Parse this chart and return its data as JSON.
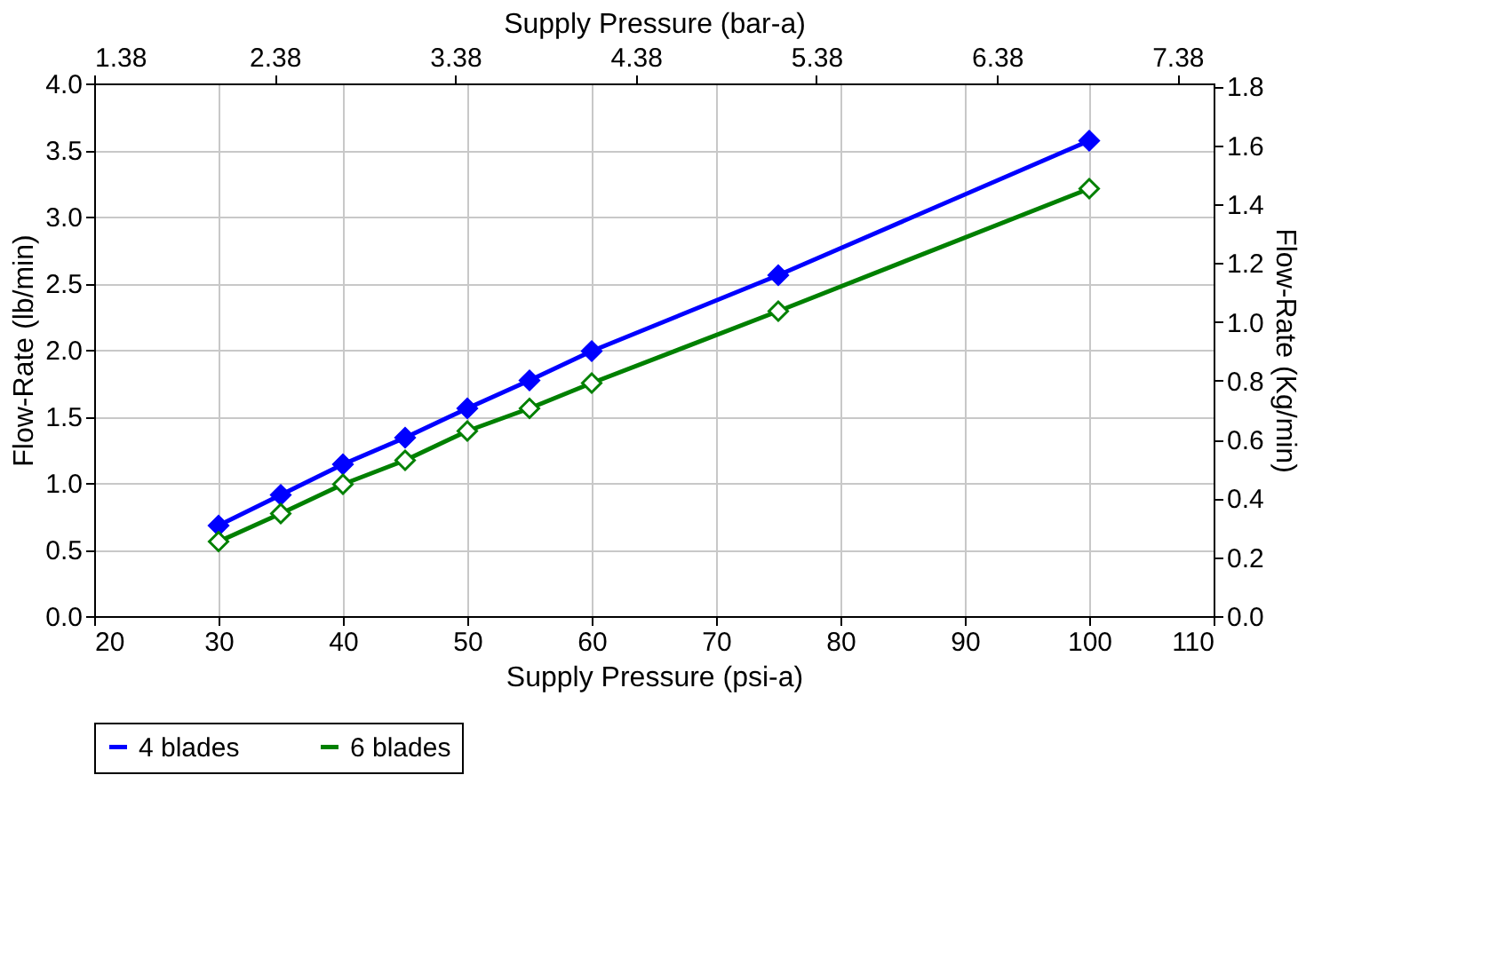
{
  "chart_data": {
    "type": "line",
    "xlabel": "Supply Pressure (psi-a)",
    "ylabel": "Flow-Rate (lb/min)",
    "y2label": "Flow-Rate (Kg/min)",
    "x2label": "Supply Pressure (bar-a)",
    "x": [
      30,
      35,
      40,
      45,
      50,
      55,
      60,
      75,
      100
    ],
    "series": [
      {
        "name": "4 blades",
        "color": "#0000ff",
        "values": [
          0.68,
          0.91,
          1.14,
          1.34,
          1.56,
          1.77,
          1.99,
          2.56,
          3.57
        ]
      },
      {
        "name": "6 blades",
        "color": "#008000",
        "values": [
          0.56,
          0.77,
          0.99,
          1.17,
          1.39,
          1.56,
          1.75,
          2.29,
          3.21
        ]
      }
    ],
    "xlim": [
      20,
      110
    ],
    "xticks": [
      20,
      30,
      40,
      50,
      60,
      70,
      80,
      90,
      100,
      110
    ],
    "ylim": [
      0,
      4
    ],
    "yticks": [
      {
        "value": 0,
        "label": "0.0"
      },
      {
        "value": 0.5,
        "label": "0.5"
      },
      {
        "value": 1,
        "label": "1.0"
      },
      {
        "value": 1.5,
        "label": "1.5"
      },
      {
        "value": 2,
        "label": "2.0"
      },
      {
        "value": 2.5,
        "label": "2.5"
      },
      {
        "value": 3,
        "label": "3.0"
      },
      {
        "value": 3.5,
        "label": "3.5"
      },
      {
        "value": 4,
        "label": "4.0"
      }
    ],
    "y2lim": [
      0,
      1.81
    ],
    "y2ticks": [
      {
        "value": 0,
        "label": "0.0"
      },
      {
        "value": 0.2,
        "label": "0.2"
      },
      {
        "value": 0.4,
        "label": "0.4"
      },
      {
        "value": 0.6,
        "label": "0.6"
      },
      {
        "value": 0.8,
        "label": "0.8"
      },
      {
        "value": 1,
        "label": "1.0"
      },
      {
        "value": 1.2,
        "label": "1.2"
      },
      {
        "value": 1.4,
        "label": "1.4"
      },
      {
        "value": 1.6,
        "label": "1.6"
      },
      {
        "value": 1.8,
        "label": "1.8"
      }
    ],
    "x2lim": [
      1.38,
      7.58
    ],
    "x2ticks": [
      1.38,
      2.38,
      3.38,
      4.38,
      5.38,
      6.38,
      7.38
    ],
    "grid": true,
    "legend": "bottom",
    "marker": "diamond",
    "line_style": "solid"
  }
}
